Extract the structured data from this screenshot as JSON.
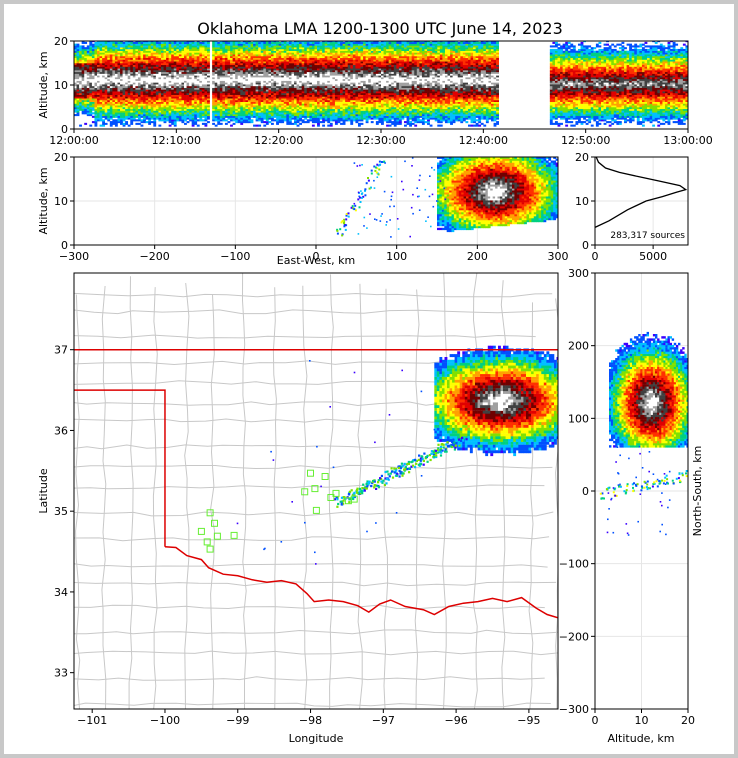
{
  "title": "Oklahoma LMA 1200-1300 UTC June 14, 2023",
  "colors": {
    "state_border": "#dd0000",
    "county_lines": "#c8c8c8",
    "stations": "#66ee33",
    "grid": "#e6e6e6",
    "density_scale": [
      "#3a00ff",
      "#0050ff",
      "#00c0ff",
      "#00d080",
      "#80e000",
      "#ffff00",
      "#ffa000",
      "#ff3000",
      "#e00000",
      "#700000",
      "#404040",
      "#a0a0a0",
      "#ffffff"
    ]
  },
  "chart_data": [
    {
      "id": "time_altitude",
      "type": "heatmap",
      "xlabel": "",
      "ylabel": "Altitude, km",
      "xlim": [
        "12:00:00",
        "13:00:00"
      ],
      "ylim": [
        0,
        20
      ],
      "xticks": [
        "12:00:00",
        "12:10:00",
        "12:20:00",
        "12:30:00",
        "12:40:00",
        "12:50:00",
        "13:00:00"
      ],
      "yticks": [
        "0",
        "10",
        "20"
      ],
      "gaps_minutes": [
        [
          13.1,
          13.3
        ],
        [
          41.5,
          46.3
        ]
      ],
      "core_altitude_km": [
        6,
        16
      ]
    },
    {
      "id": "east_west_altitude",
      "type": "heatmap",
      "xlabel": "East-West, km",
      "ylabel": "Altitude, km",
      "xlim": [
        -300,
        300
      ],
      "ylim": [
        0,
        20
      ],
      "xticks": [
        "−300",
        "−200",
        "−100",
        "0",
        "100",
        "200",
        "300"
      ],
      "yticks": [
        "0",
        "10",
        "20"
      ],
      "storm_center_km": [
        220,
        12
      ]
    },
    {
      "id": "altitude_histogram",
      "type": "line",
      "xlabel": "",
      "ylabel": "",
      "xlim": [
        0,
        8000
      ],
      "ylim": [
        0,
        20
      ],
      "xticks": [
        "0",
        "5000"
      ],
      "yticks": [
        "0",
        "10",
        "20"
      ],
      "annotation": "283,317 sources",
      "x": [
        0,
        1200,
        2800,
        4400,
        5800,
        7000,
        7800,
        7300,
        5600,
        3800,
        2100,
        900,
        300,
        100
      ],
      "y": [
        4,
        5.5,
        8,
        10,
        11,
        12,
        12.6,
        13.5,
        14.5,
        15.5,
        16.5,
        17.5,
        18.8,
        20
      ]
    },
    {
      "id": "plan_view",
      "type": "heatmap",
      "xlabel": "Longitude",
      "ylabel": "Latitude",
      "xlim": [
        -101.25,
        -94.6
      ],
      "ylim": [
        32.55,
        37.95
      ],
      "xticks": [
        "−101",
        "−100",
        "−99",
        "−98",
        "−97",
        "−96",
        "−95"
      ],
      "yticks": [
        "33",
        "34",
        "35",
        "36",
        "37"
      ],
      "storm_center_lonlat": [
        -95.4,
        36.35
      ],
      "stations_lonlat": [
        [
          -99.38,
          34.98
        ],
        [
          -99.5,
          34.75
        ],
        [
          -99.32,
          34.85
        ],
        [
          -99.28,
          34.69
        ],
        [
          -99.42,
          34.62
        ],
        [
          -99.38,
          34.53
        ],
        [
          -99.05,
          34.7
        ],
        [
          -98.0,
          35.47
        ],
        [
          -97.8,
          35.43
        ],
        [
          -98.08,
          35.24
        ],
        [
          -97.94,
          35.28
        ],
        [
          -97.92,
          35.01
        ],
        [
          -97.72,
          35.17
        ],
        [
          -97.65,
          35.22
        ],
        [
          -97.48,
          35.13
        ],
        [
          -97.4,
          35.15
        ]
      ]
    },
    {
      "id": "altitude_north_south",
      "type": "heatmap",
      "xlabel": "Altitude, km",
      "ylabel": "North-South, km",
      "xlim": [
        0,
        20
      ],
      "ylim": [
        -300,
        300
      ],
      "xticks": [
        "0",
        "10",
        "20"
      ],
      "yticks": [
        "−300",
        "−200",
        "−100",
        "0",
        "100",
        "200",
        "300"
      ],
      "storm_center_km": [
        12,
        120
      ]
    }
  ]
}
